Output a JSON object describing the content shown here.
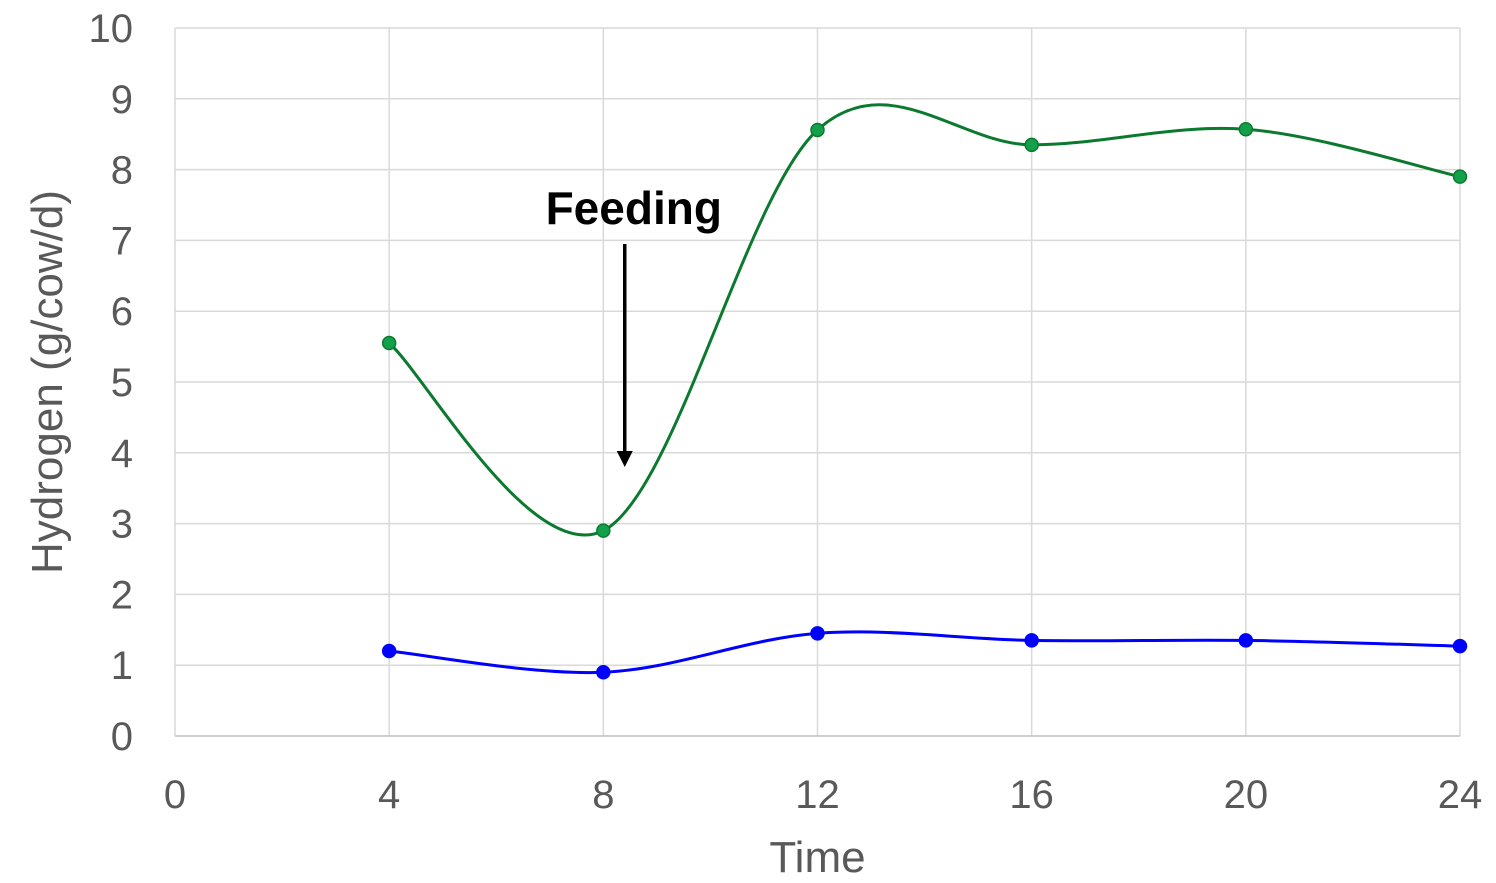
{
  "chart_data": {
    "type": "line",
    "title": "",
    "xlabel": "Time",
    "ylabel": "Hydrogen (g/cow/d)",
    "xlim": [
      0,
      24
    ],
    "ylim": [
      0,
      10
    ],
    "x_ticks": [
      0,
      4,
      8,
      12,
      16,
      20,
      24
    ],
    "y_ticks": [
      0,
      1,
      2,
      3,
      4,
      5,
      6,
      7,
      8,
      9,
      10
    ],
    "grid": true,
    "smooth": true,
    "legend": "none",
    "series": [
      {
        "color": "#0b7a2f",
        "marker_color": "#12a04a",
        "x": [
          4,
          8,
          12,
          16,
          20,
          24
        ],
        "values": [
          5.55,
          2.9,
          8.56,
          8.35,
          8.57,
          7.9
        ]
      },
      {
        "color": "#0000ff",
        "marker_color": "#0000ff",
        "x": [
          4,
          8,
          12,
          16,
          20,
          24
        ],
        "values": [
          1.2,
          0.9,
          1.45,
          1.35,
          1.35,
          1.27
        ]
      }
    ],
    "annotations": [
      {
        "text": "Feeding",
        "x": 8.4,
        "arrow_y_from": 6.95,
        "arrow_y_to": 3.8
      }
    ]
  }
}
